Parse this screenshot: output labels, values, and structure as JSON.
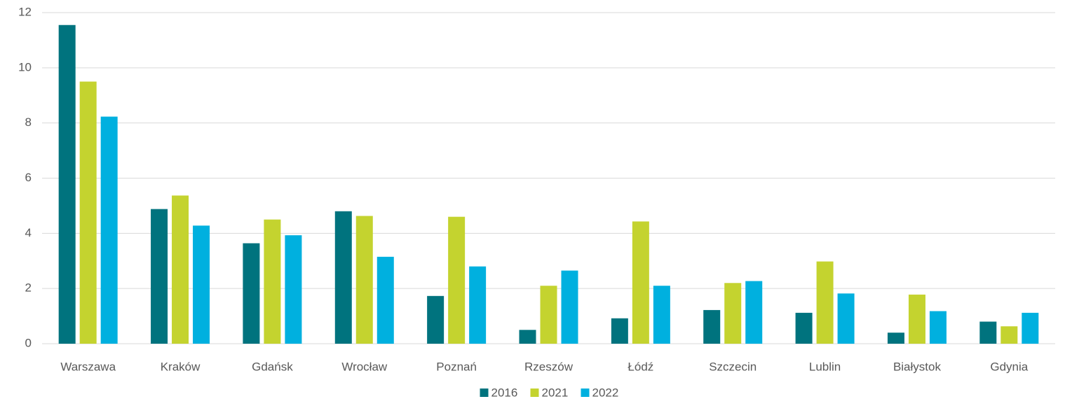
{
  "chart_data": {
    "type": "bar",
    "categories": [
      "Warszawa",
      "Kraków",
      "Gdańsk",
      "Wrocław",
      "Poznań",
      "Rzeszów",
      "Łódź",
      "Szczecin",
      "Lublin",
      "Białystok",
      "Gdynia"
    ],
    "series": [
      {
        "name": "2016",
        "color": "#00737e",
        "values": [
          11.55,
          4.88,
          3.64,
          4.8,
          1.73,
          0.5,
          0.92,
          1.22,
          1.12,
          0.4,
          0.8
        ]
      },
      {
        "name": "2021",
        "color": "#c4d32f",
        "values": [
          9.5,
          5.37,
          4.5,
          4.63,
          4.6,
          2.1,
          4.43,
          2.2,
          2.98,
          1.78,
          0.63
        ]
      },
      {
        "name": "2022",
        "color": "#00b0df",
        "values": [
          8.23,
          4.28,
          3.93,
          3.15,
          2.8,
          2.65,
          2.1,
          2.27,
          1.82,
          1.18,
          1.12
        ]
      }
    ],
    "ylim": [
      0,
      12
    ],
    "yticks": [
      0,
      2,
      4,
      6,
      8,
      10,
      12
    ],
    "grid": true,
    "legend": "bottom"
  }
}
